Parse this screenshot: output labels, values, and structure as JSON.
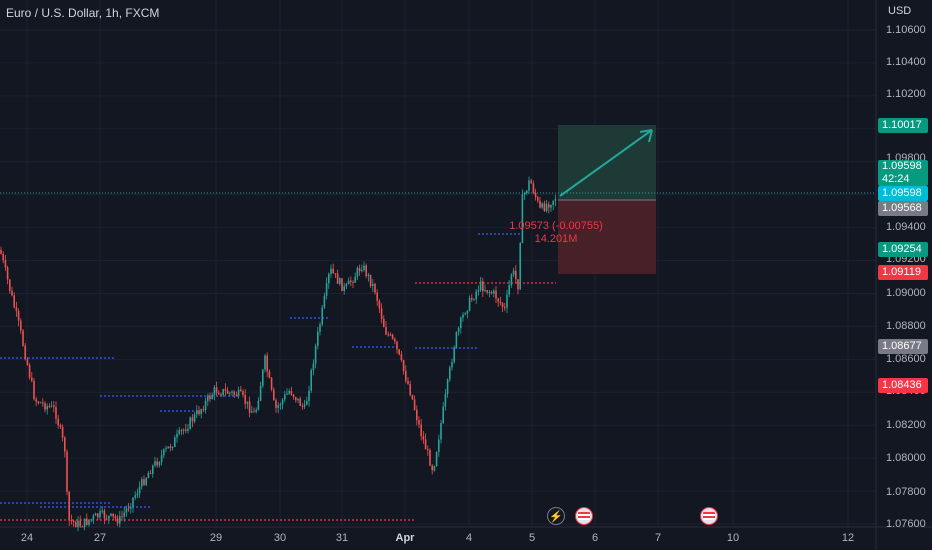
{
  "header": {
    "title": "Euro / U.S. Dollar, 1h, FXCM",
    "currency": "USD"
  },
  "y_axis_ticks": [
    "1.10600",
    "1.10400",
    "1.10200",
    "1.09800",
    "1.09400",
    "1.09200",
    "1.09000",
    "1.08800",
    "1.08600",
    "1.08400",
    "1.08200",
    "1.08000",
    "1.07800",
    "1.07600"
  ],
  "x_axis_ticks": [
    "24",
    "27",
    "29",
    "30",
    "31",
    "Apr",
    "4",
    "5",
    "6",
    "7",
    "10",
    "12"
  ],
  "price_badges": {
    "target": "1.10017",
    "last_price": "1.09598",
    "countdown": "42:24",
    "cursor_price": "1.09598",
    "entry": "1.09568",
    "level_1": "1.09254",
    "stop": "1.09119",
    "level_2": "1.08677",
    "level_3": "1.08436"
  },
  "position_label": {
    "line1": "1.09573 (-0.00755)",
    "line2": "14.201M"
  },
  "colors": {
    "background": "#131722",
    "up": "#26a69a",
    "down": "#ef5350",
    "target_zone": "#1d3c38",
    "stop_zone": "#4a2129",
    "badge_green": "#089981",
    "badge_red": "#f23645",
    "badge_gray": "#787b86",
    "badge_cyan": "#00bcd4"
  },
  "event_icons": [
    "flash-icon",
    "us-flag-icon",
    "us-flag-icon"
  ]
}
